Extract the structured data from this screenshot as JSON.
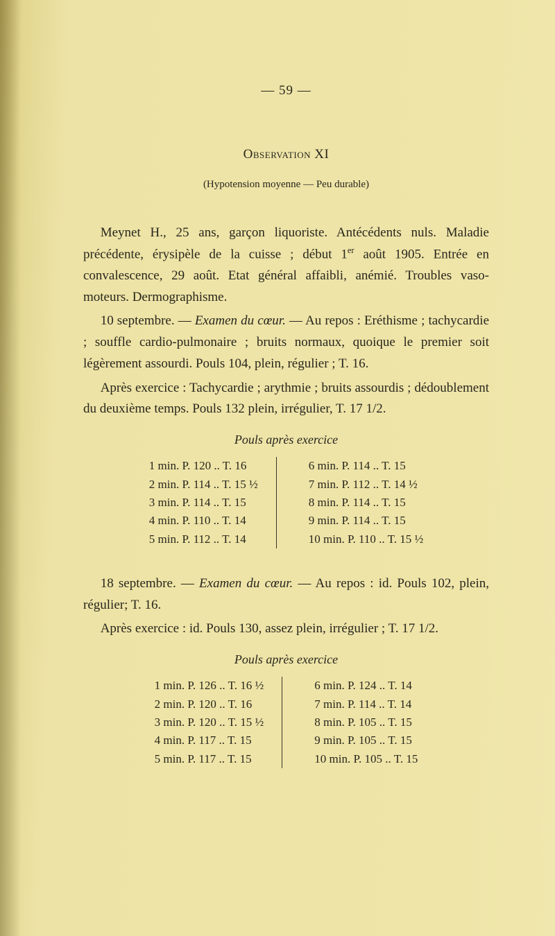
{
  "page_number_display": "— 59 —",
  "observation_title": "Observation XI",
  "subtitle": "(Hypotension moyenne — Peu durable)",
  "paragraphs_a": [
    "Meynet H., 25 ans, garçon liquoriste. Antécédents nuls. Ma­ladie précédente, érysipèle de la cuisse ; début 1<sup>er</sup> août 1905. Entrée en convalescence, 29 août. Etat général affaibli, ané­mié. Troubles vaso-moteurs. Dermographisme.",
    "10 septembre. — <em>Examen du cœur.</em> — Au repos : Eréthis­me ; tachycardie ; souffle cardio-pulmonaire ; bruits normaux, quoique le premier soit légèrement assourdi. Pouls 104, plein, régulier ; T. 16.",
    "Après exercice : Tachycardie ; arythmie ; bruits assourdis ; dédoublement du deuxième temps. Pouls 132 plein, irrégulier, T. 17 1/2."
  ],
  "pulse1_heading": "Pouls après exercice",
  "pulse1_left": [
    "1 min. P. 120 .. T. 16",
    "2 min. P. 114 .. T. 15 ½",
    "3 min. P. 114 .. T. 15",
    "4 min. P. 110 .. T. 14",
    "5 min. P. 112 .. T. 14"
  ],
  "pulse1_right": [
    "6 min. P. 114 .. T. 15",
    "7 min. P. 112 .. T. 14 ½",
    "8 min. P. 114 .. T. 15",
    "9 min. P. 114 .. T. 15",
    "10 min. P. 110 .. T. 15 ½"
  ],
  "paragraphs_b": [
    "18 septembre. — <em>Examen du cœur.</em> — Au repos : id. Pouls 102, plein, régulier; T. 16.",
    "Après exercice : id. Pouls 130, assez plein, irrégulier ; T. 17 1/2."
  ],
  "pulse2_heading": "Pouls après exercice",
  "pulse2_left": [
    "1 min. P. 126 .. T. 16 ½",
    "2 min. P. 120 .. T. 16",
    "3 min. P. 120 .. T. 15 ½",
    "4 min. P. 117 .. T. 15",
    "5 min. P. 117 .. T. 15"
  ],
  "pulse2_right": [
    "6 min. P. 124 .. T. 14",
    "7 min. P. 114 .. T. 14",
    "8 min. P. 105 .. T. 15",
    "9 min. P. 105 .. T. 15",
    "10 min. P. 105 .. T. 15"
  ]
}
